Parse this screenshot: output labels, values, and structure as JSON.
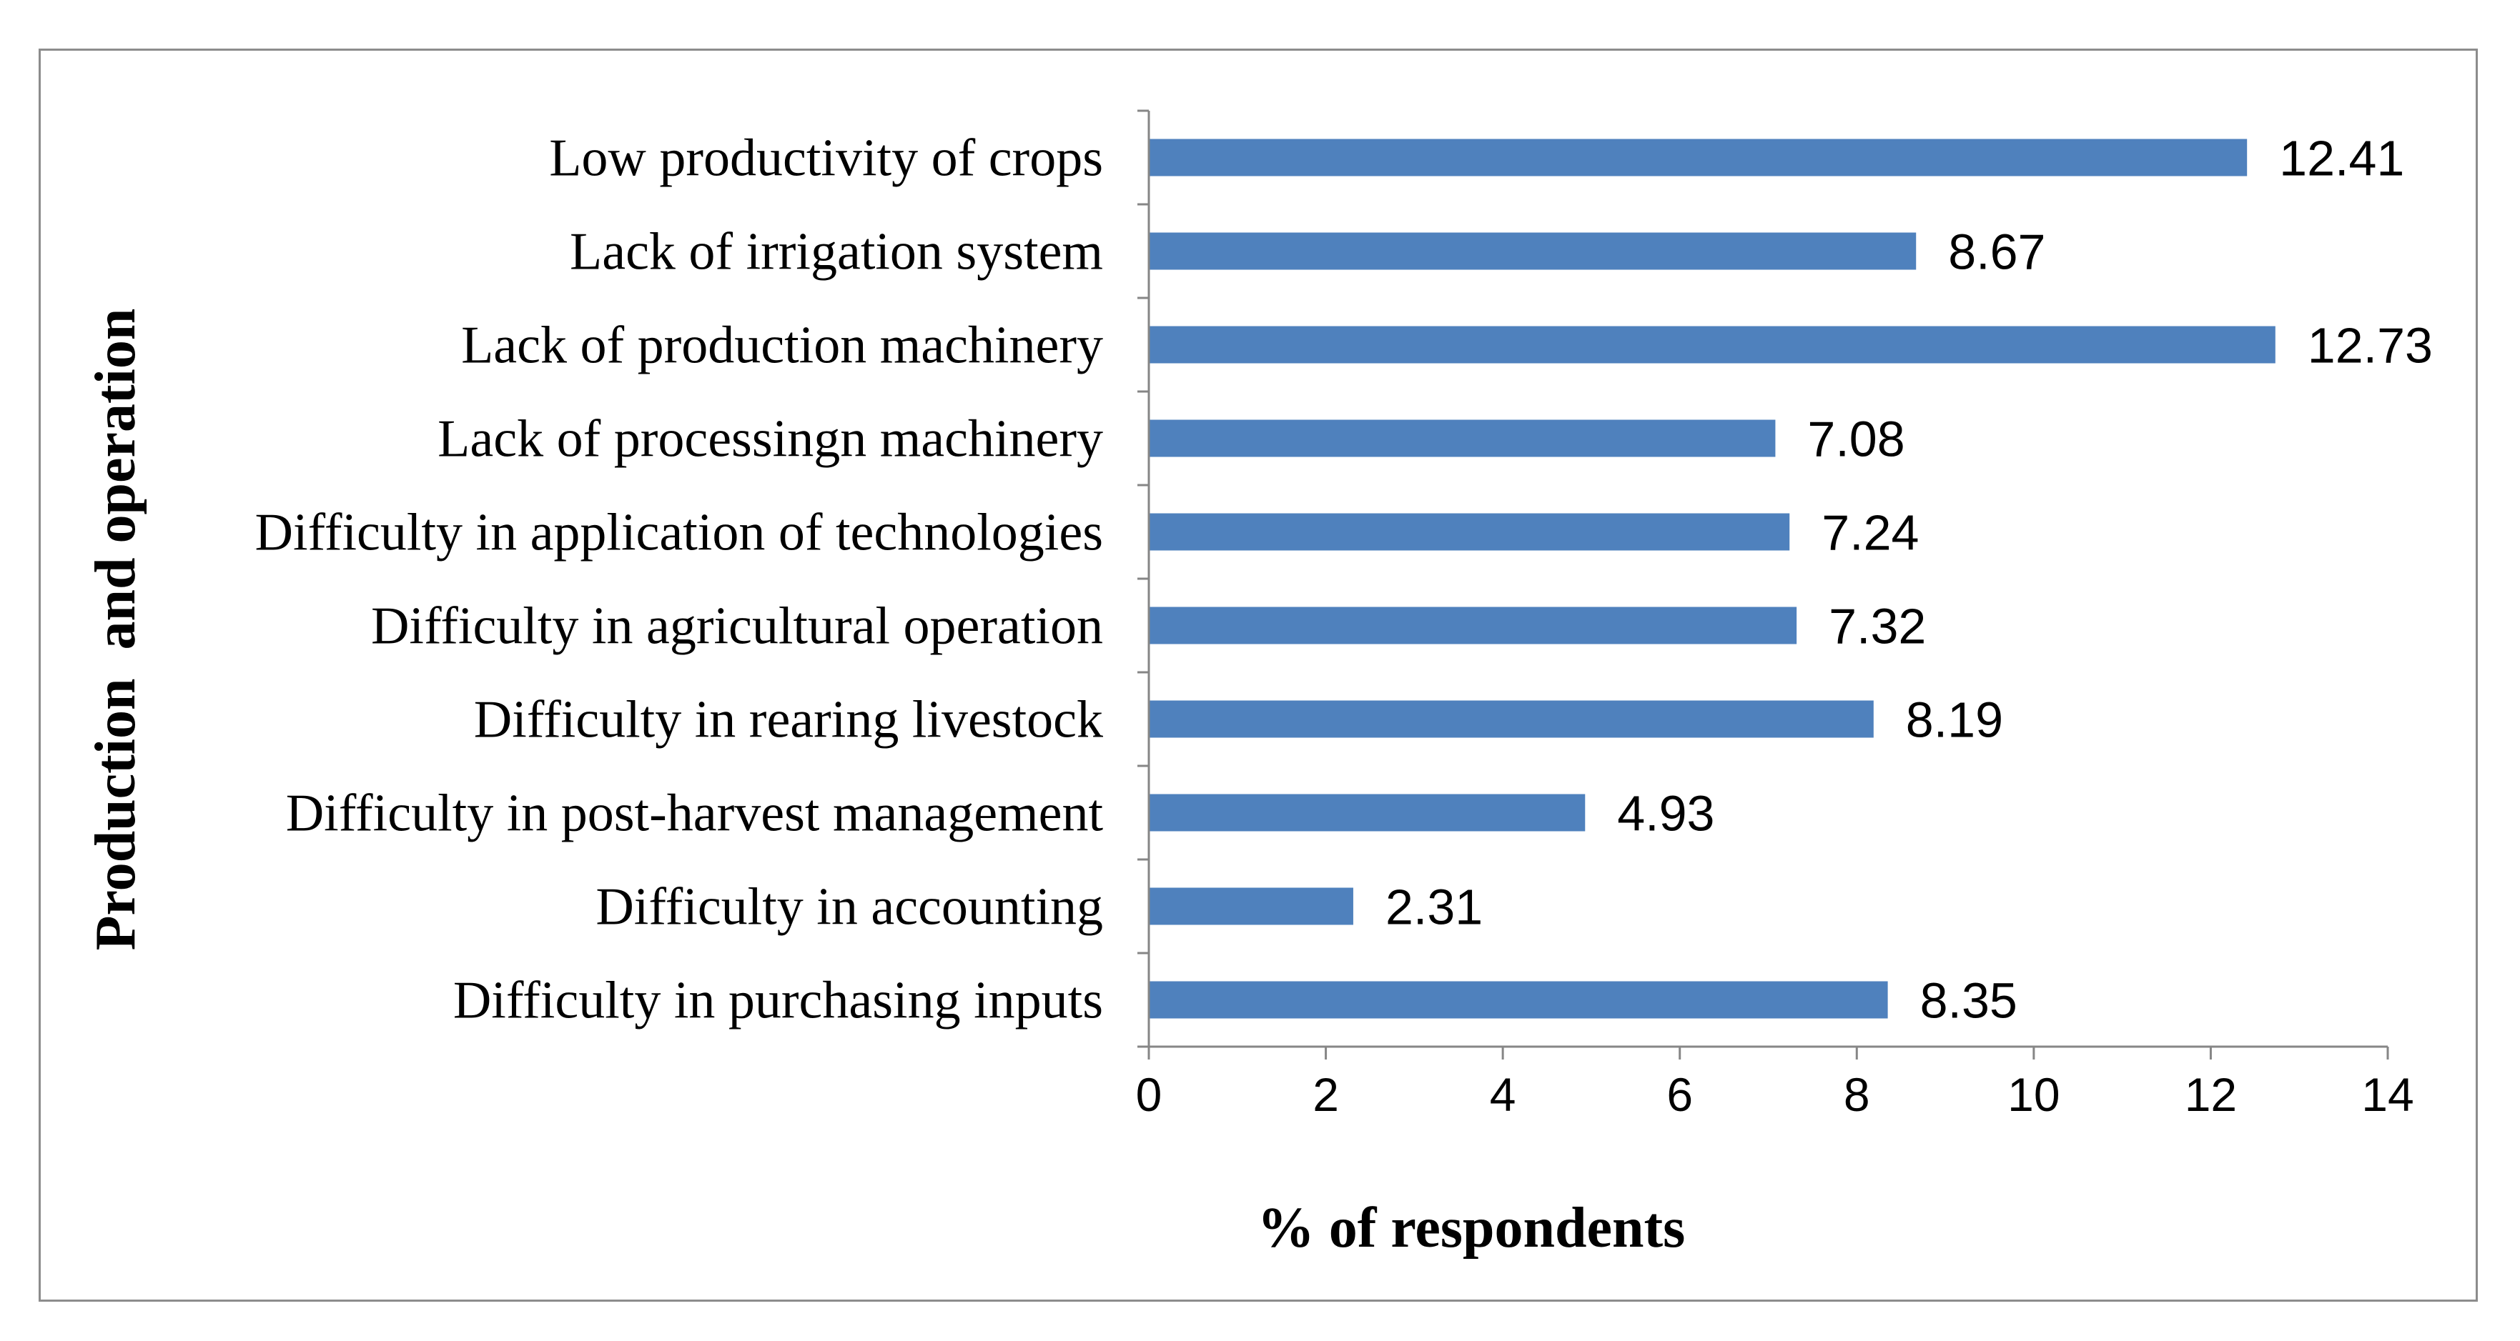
{
  "chart_data": {
    "type": "bar",
    "orientation": "horizontal",
    "categories": [
      "Low productivity of crops",
      "Lack of irrigation system",
      "Lack of production machinery",
      "Lack of processingn machinery",
      "Difficulty in application of technologies",
      "Difficulty in agricultural operation",
      "Difficulty in rearing livestock",
      "Difficulty in post-harvest management",
      "Difficulty in accounting",
      "Difficulty in purchasing inputs"
    ],
    "values": [
      12.41,
      8.67,
      12.73,
      7.08,
      7.24,
      7.32,
      8.19,
      4.93,
      2.31,
      8.35
    ],
    "value_labels": [
      "12.41",
      "8.67",
      "12.73",
      "7.08",
      "7.24",
      "7.32",
      "8.19",
      "4.93",
      "2.31",
      "8.35"
    ],
    "xlabel": "% of respondents",
    "ylabel": "Production  and operation",
    "xlim": [
      0,
      14
    ],
    "xticks": [
      0,
      2,
      4,
      6,
      8,
      10,
      12,
      14
    ],
    "grid": false,
    "bar_color": "#4F81BD"
  }
}
